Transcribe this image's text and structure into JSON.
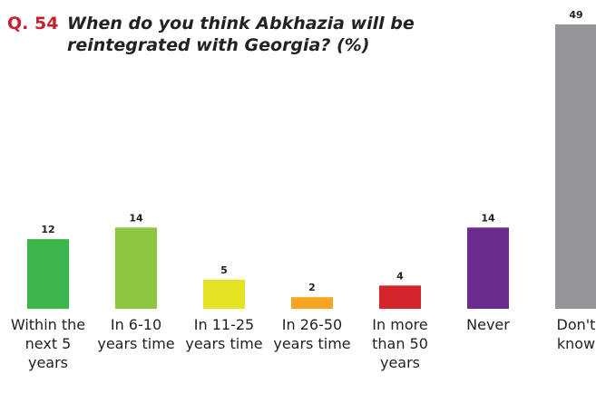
{
  "chart_data": {
    "type": "bar",
    "title_prefix": "Q. 54",
    "title": "When do you think Abkhazia will be reintegrated with Georgia? (%)",
    "categories": [
      "Within the next 5 years",
      "In 6-10 years time",
      "In 11-25 years time",
      "In 26-50 years time",
      "In more than 50 years",
      "Never",
      "Don't know"
    ],
    "values": [
      12,
      14,
      5,
      2,
      4,
      14,
      49
    ],
    "colors": [
      "#3ab54a",
      "#8cc63f",
      "#e4e425",
      "#f7a521",
      "#d5252c",
      "#6a2c8f",
      "#939598"
    ]
  }
}
